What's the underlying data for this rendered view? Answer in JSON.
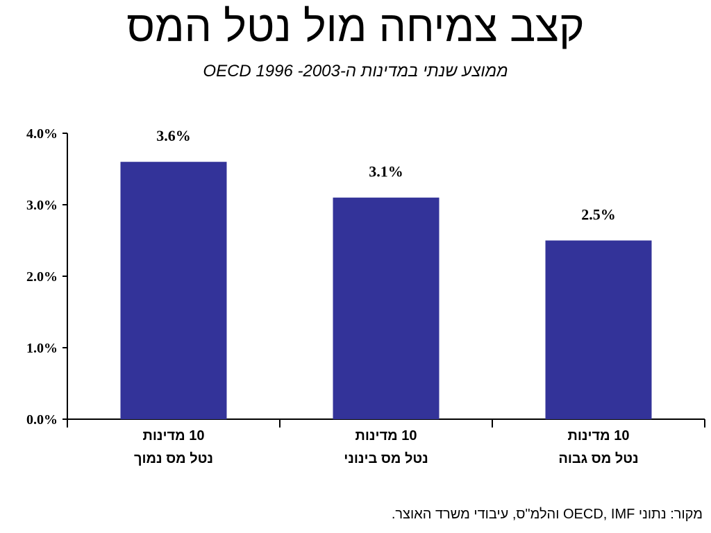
{
  "chart_data": {
    "type": "bar",
    "title": "קצב צמיחה מול נטל המס",
    "subtitle": "ממוצע שנתי במדינות ה-OECD 1996 -2003",
    "categories": [
      [
        "10 מדינות",
        "נטל מס נמוך"
      ],
      [
        "10 מדינות",
        "נטל מס בינוני"
      ],
      [
        "10 מדינות",
        "נטל מס גבוה"
      ]
    ],
    "values": [
      3.6,
      3.1,
      2.5
    ],
    "value_labels": [
      "3.6%",
      "3.1%",
      "2.5%"
    ],
    "y_ticks": [
      0,
      1,
      2,
      3,
      4
    ],
    "y_tick_labels": [
      "0.0%",
      "1.0%",
      "2.0%",
      "3.0%",
      "4.0%"
    ],
    "ylim": [
      0,
      4
    ],
    "bar_color": "#333399",
    "grid": false,
    "legend": false,
    "source": "מקור: נתוני OECD, IMF והלמ\"ס, עיבודי משרד האוצר."
  }
}
